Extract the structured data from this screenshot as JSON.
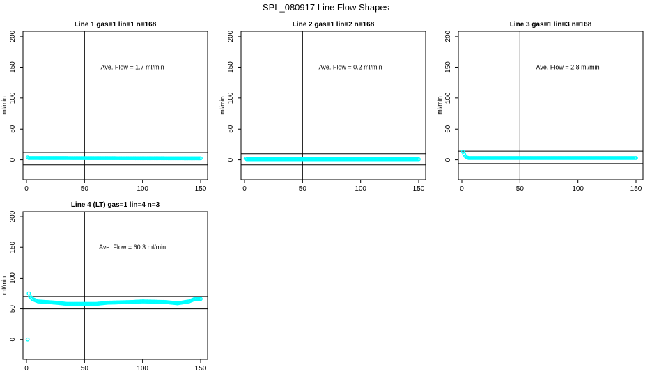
{
  "figure": {
    "title": "SPL_080917  Line Flow Shapes"
  },
  "chart_data": [
    {
      "type": "scatter",
      "title": "Line 1 gas=1 lin=1 n=168",
      "xlabel": "",
      "ylabel": "ml/min",
      "xlim": [
        -3,
        156
      ],
      "ylim": [
        -32,
        208
      ],
      "xticks": [
        0,
        50,
        100,
        150
      ],
      "yticks": [
        0,
        50,
        100,
        150,
        200
      ],
      "annotation": "Ave. Flow =  1.7  ml/min",
      "vline": 50,
      "hlines": [
        12,
        -8
      ],
      "point_color": "#00FFFF",
      "n_points": 150,
      "y_profile": [
        [
          1,
          4
        ],
        [
          2,
          3
        ],
        [
          150,
          2.5
        ]
      ]
    },
    {
      "type": "scatter",
      "title": "Line 2 gas=1 lin=2 n=168",
      "xlabel": "",
      "ylabel": "ml/min",
      "xlim": [
        -3,
        156
      ],
      "ylim": [
        -32,
        208
      ],
      "xticks": [
        0,
        50,
        100,
        150
      ],
      "yticks": [
        0,
        50,
        100,
        150,
        200
      ],
      "annotation": "Ave. Flow =  0.2  ml/min",
      "vline": 50,
      "hlines": [
        10,
        -8
      ],
      "point_color": "#00FFFF",
      "n_points": 150,
      "y_profile": [
        [
          1,
          2
        ],
        [
          2,
          1
        ],
        [
          150,
          1
        ]
      ]
    },
    {
      "type": "scatter",
      "title": "Line 3 gas=1 lin=3 n=168",
      "xlabel": "",
      "ylabel": "ml/min",
      "xlim": [
        -3,
        156
      ],
      "ylim": [
        -32,
        208
      ],
      "xticks": [
        0,
        50,
        100,
        150
      ],
      "yticks": [
        0,
        50,
        100,
        150,
        200
      ],
      "annotation": "Ave. Flow =  2.8  ml/min",
      "vline": 50,
      "hlines": [
        14,
        -6
      ],
      "point_color": "#00FFFF",
      "n_points": 150,
      "y_profile": [
        [
          1,
          13
        ],
        [
          2,
          9
        ],
        [
          3,
          6
        ],
        [
          4,
          4
        ],
        [
          6,
          3
        ],
        [
          150,
          3
        ]
      ]
    },
    {
      "type": "scatter",
      "title": "Line 4 (LT) gas=1 lin=4 n=3",
      "xlabel": "",
      "ylabel": "ml/min",
      "xlim": [
        -3,
        156
      ],
      "ylim": [
        -32,
        208
      ],
      "xticks": [
        0,
        50,
        100,
        150
      ],
      "yticks": [
        0,
        50,
        100,
        150,
        200
      ],
      "annotation": "Ave. Flow =  60.3  ml/min",
      "vline": 50,
      "hlines": [
        70,
        50
      ],
      "point_color": "#00FFFF",
      "n_points": 150,
      "y_profile": [
        [
          1,
          0
        ],
        [
          2,
          75
        ],
        [
          3,
          70
        ],
        [
          5,
          66
        ],
        [
          10,
          62
        ],
        [
          25,
          60
        ],
        [
          35,
          58
        ],
        [
          60,
          58
        ],
        [
          70,
          60
        ],
        [
          90,
          61
        ],
        [
          100,
          62
        ],
        [
          120,
          61
        ],
        [
          130,
          59
        ],
        [
          140,
          62
        ],
        [
          145,
          66
        ],
        [
          150,
          66
        ]
      ]
    }
  ]
}
